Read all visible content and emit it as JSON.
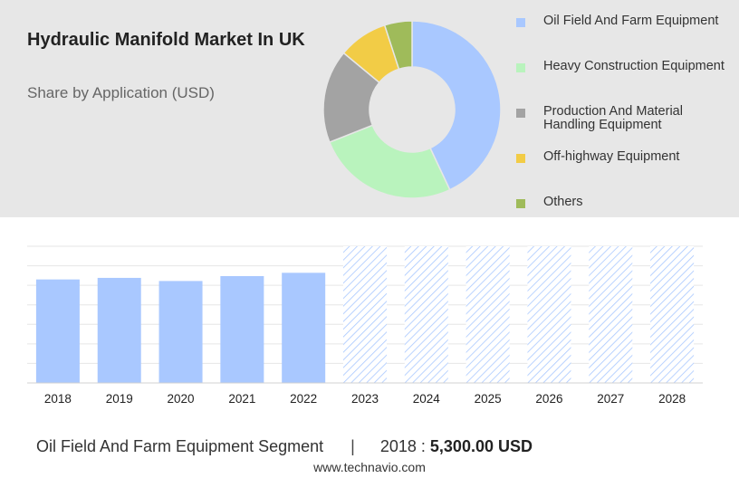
{
  "header": {
    "title": "Hydraulic Manifold Market In UK",
    "subtitle": "Share by Application (USD)"
  },
  "chart_data": [
    {
      "type": "pie",
      "variant": "donut",
      "title": "Hydraulic Manifold Market In UK",
      "subtitle": "Share by Application (USD)",
      "legend_position": "right",
      "slices": [
        {
          "label": "Oil Field And Farm Equipment",
          "value": 43,
          "color": "#a9c8ff"
        },
        {
          "label": "Heavy Construction Equipment",
          "value": 26,
          "color": "#b9f3bd"
        },
        {
          "label": "Production And Material Handling Equipment",
          "value": 17,
          "color": "#a3a3a3"
        },
        {
          "label": "Off-highway Equipment",
          "value": 9,
          "color": "#f2cc46"
        },
        {
          "label": "Others",
          "value": 5,
          "color": "#9fbb5a"
        }
      ]
    },
    {
      "type": "bar",
      "categories": [
        "2018",
        "2019",
        "2020",
        "2021",
        "2022",
        "2023",
        "2024",
        "2025",
        "2026",
        "2027",
        "2028"
      ],
      "values": [
        5300,
        5380,
        5220,
        5470,
        5640,
        null,
        null,
        null,
        null,
        null,
        null
      ],
      "forecast_categories": [
        "2023",
        "2024",
        "2025",
        "2026",
        "2027",
        "2028"
      ],
      "ylim": [
        0,
        7000
      ],
      "grid": true,
      "bar_color": "#a9c8ff",
      "forecast_style": "hatched"
    }
  ],
  "footer": {
    "segment": "Oil Field And Farm Equipment Segment",
    "separator": "|",
    "year_label": "2018 :",
    "value": "5,300.00 USD",
    "site": "www.technavio.com"
  }
}
